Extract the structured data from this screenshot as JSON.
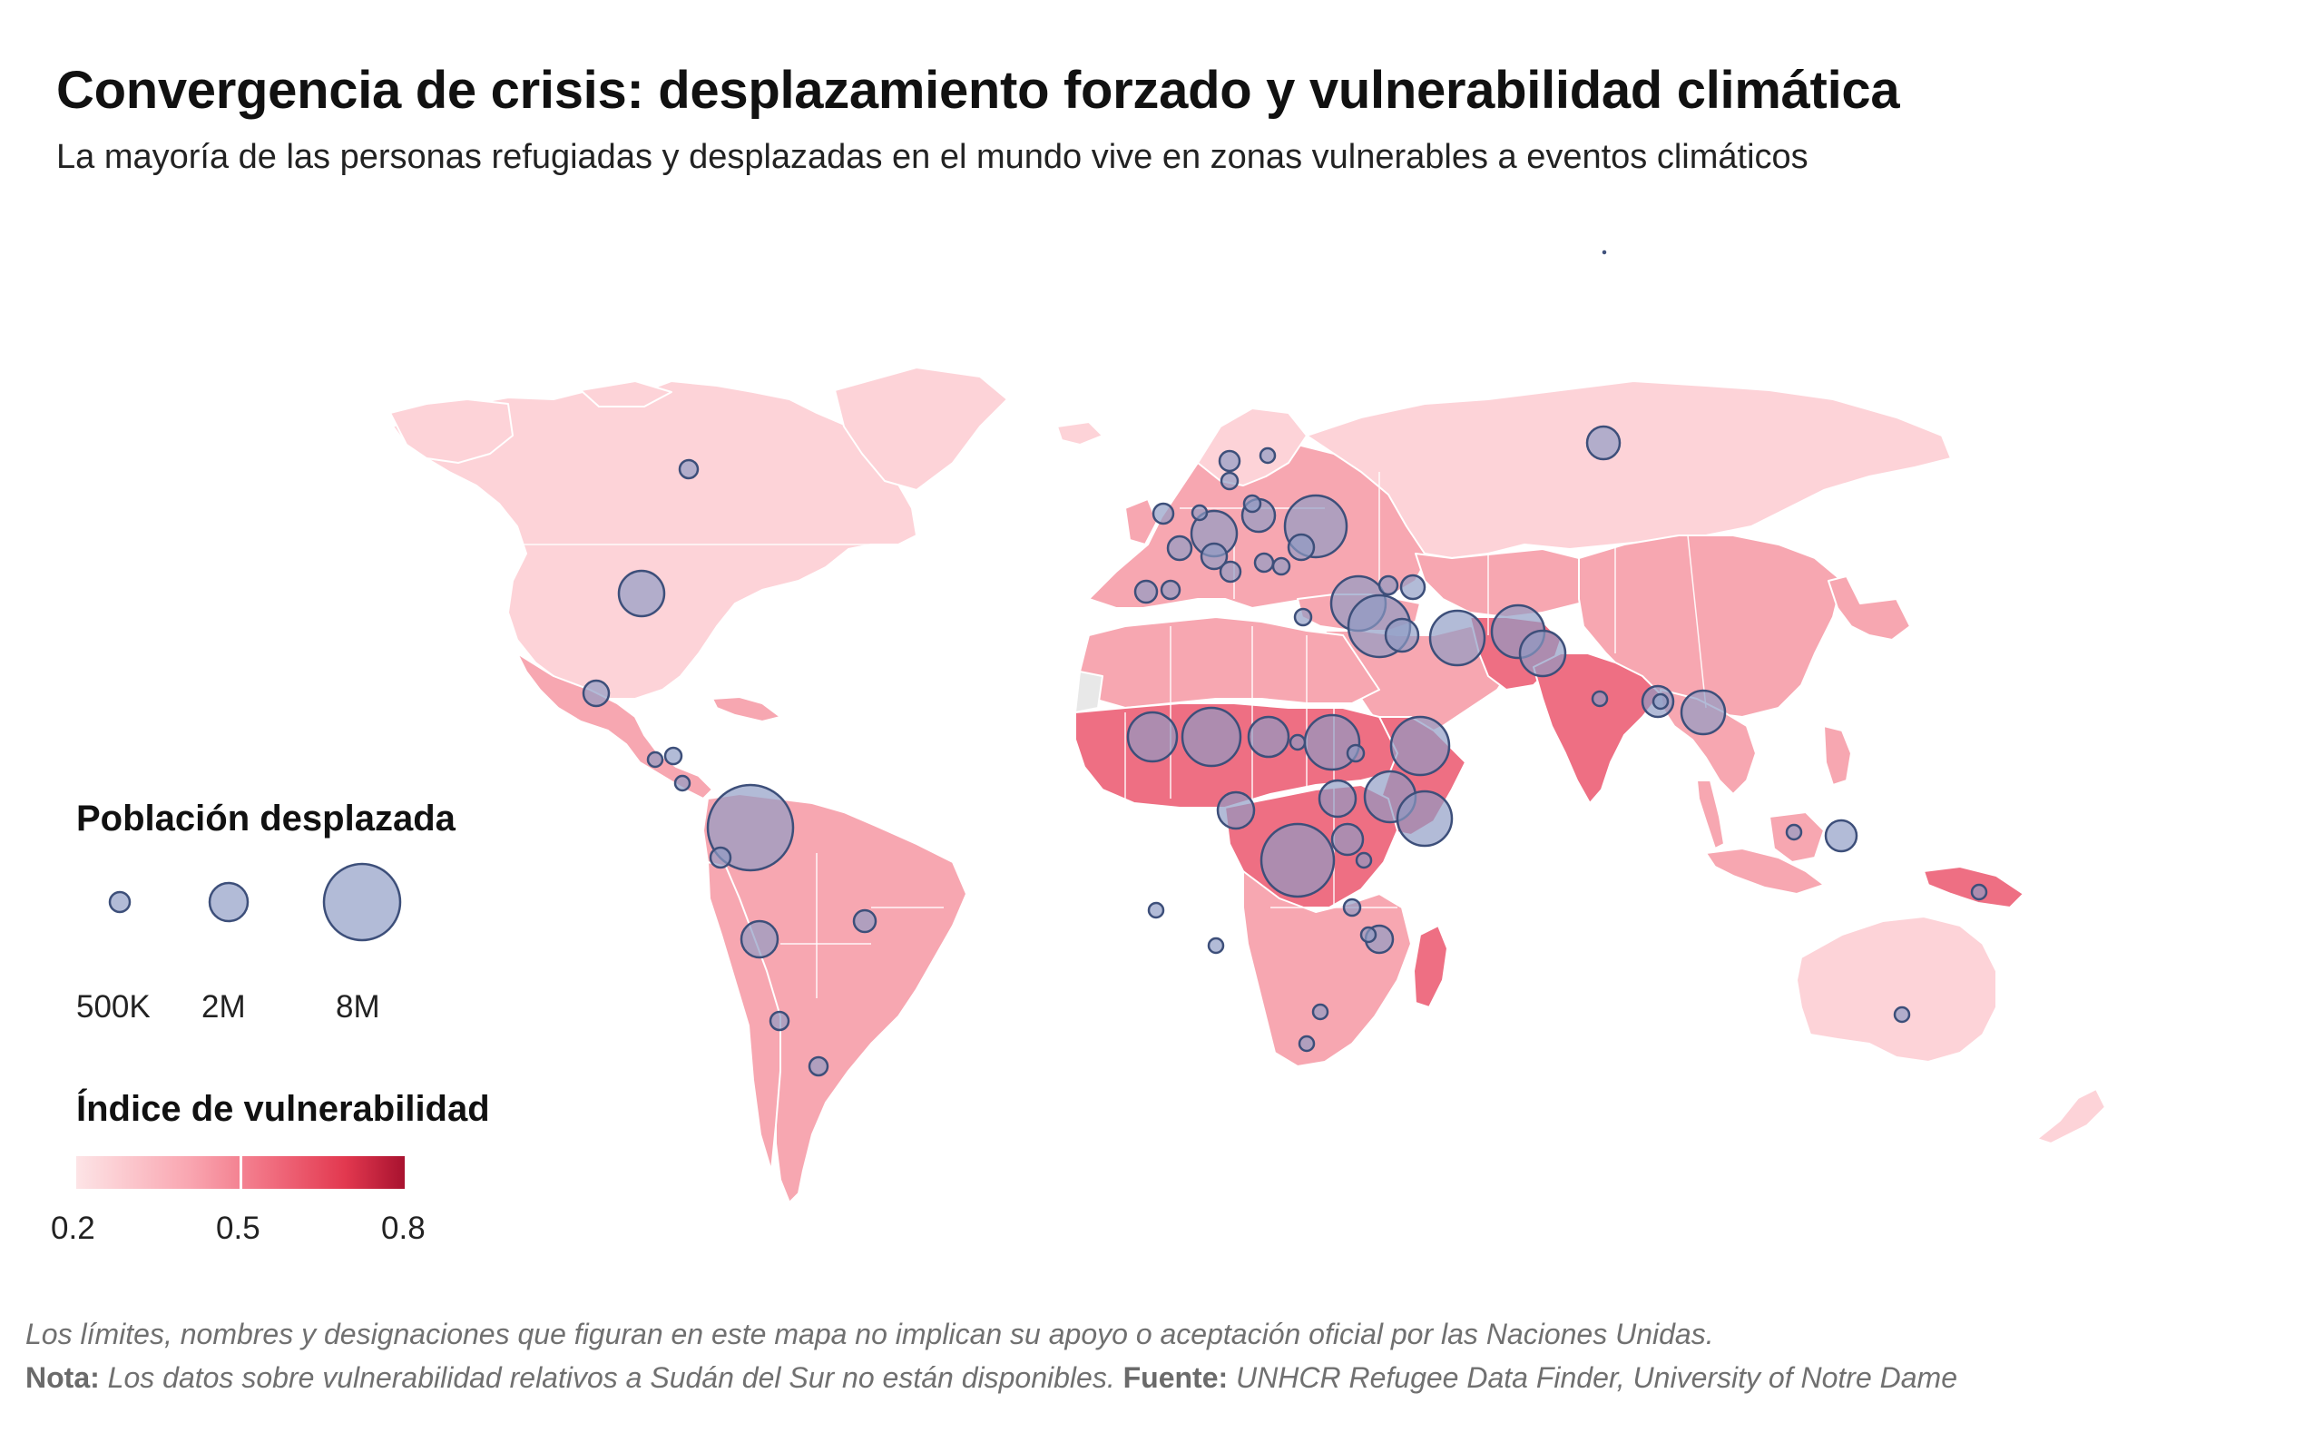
{
  "title": "Convergencia de crisis: desplazamiento forzado y vulnerabilidad climática",
  "subtitle": "La mayoría de las personas refugiadas y desplazadas en el mundo vive en zonas vulnerables a eventos climáticos",
  "legend_size": {
    "title": "Población desplazada",
    "labels": [
      "500K",
      "2M",
      "8M"
    ]
  },
  "legend_color": {
    "title": "Índice de vulnerabilidad",
    "ticks": [
      "0.2",
      "0.5",
      "0.8"
    ],
    "colors": [
      "#fde4e6",
      "#f9a5b0",
      "#f06b7d",
      "#e2384f",
      "#a8122f"
    ]
  },
  "footer": {
    "disclaimer": "Los límites, nombres y designaciones que figuran en este mapa no implican su apoyo o aceptación oficial por las Naciones Unidas.",
    "note_label": "Nota:",
    "note_text": "Los datos sobre vulnerabilidad relativos a Sudán del Sur no están disponibles.",
    "source_label": "Fuente:",
    "source_text": "UNHCR Refugee Data Finder, University of Notre Dame"
  },
  "style": {
    "bubble_fill": "#8d9bc4",
    "bubble_stroke": "#3d4f7a",
    "land_low": "#fdd3d8",
    "land_mid": "#f7a7b1",
    "land_high": "#ea5068",
    "no_data": "#e8e8e8"
  }
}
